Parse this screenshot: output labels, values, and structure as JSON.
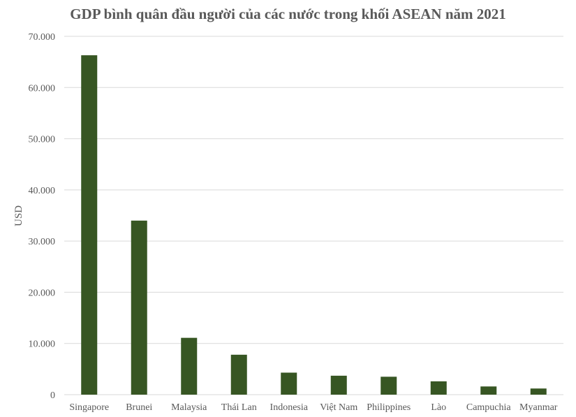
{
  "chart_data": {
    "type": "bar",
    "title": "GDP bình quân đầu người của các nước trong khối ASEAN năm 2021",
    "xlabel": "",
    "ylabel": "USD",
    "categories": [
      "Singapore",
      "Brunei",
      "Malaysia",
      "Thái Lan",
      "Indonesia",
      "Việt Nam",
      "Philippines",
      "Lào",
      "Campuchia",
      "Myanmar"
    ],
    "values": [
      66300,
      34000,
      11100,
      7800,
      4300,
      3700,
      3500,
      2600,
      1600,
      1200
    ],
    "ylim": [
      0,
      70000
    ],
    "yticks": [
      0,
      10000,
      20000,
      30000,
      40000,
      50000,
      60000,
      70000
    ],
    "ytick_labels": [
      "0",
      "10.000",
      "20.000",
      "30.000",
      "40.000",
      "50.000",
      "60.000",
      "70.000"
    ],
    "grid": true,
    "legend": "none",
    "colors": {
      "bar": "#375623",
      "grid": "#d9d9d9",
      "text": "#595959"
    }
  }
}
